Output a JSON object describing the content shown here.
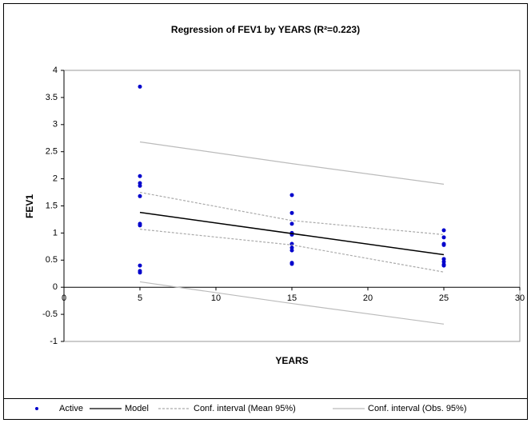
{
  "chart_data": {
    "type": "scatter",
    "title": "Regression of FEV1 by YEARS (R²=0.223)",
    "x_label": "YEARS",
    "y_label": "FEV1",
    "xlim": [
      0,
      30
    ],
    "xticks": [
      0,
      5,
      10,
      15,
      20,
      25,
      30
    ],
    "ylim": [
      -1,
      4
    ],
    "yticks": [
      -1,
      -0.5,
      0,
      0.5,
      1,
      1.5,
      2,
      2.5,
      3,
      3.5,
      4
    ],
    "series": [
      {
        "name": "Active",
        "kind": "points",
        "color": "#0000cc",
        "x": [
          5,
          5,
          5,
          5,
          5,
          5,
          5,
          5,
          5,
          5,
          15,
          15,
          15,
          15,
          15,
          15,
          15,
          15,
          15,
          15,
          25,
          25,
          25,
          25,
          25,
          25,
          25,
          25
        ],
        "values": [
          3.7,
          2.05,
          1.92,
          1.87,
          1.68,
          1.17,
          1.14,
          0.4,
          0.3,
          0.27,
          1.7,
          1.37,
          1.17,
          1.0,
          0.97,
          0.8,
          0.73,
          0.68,
          0.45,
          0.43,
          1.05,
          0.92,
          0.8,
          0.78,
          0.52,
          0.47,
          0.42,
          0.4
        ]
      },
      {
        "name": "Model",
        "kind": "line",
        "color": "#000000",
        "x": [
          5,
          25
        ],
        "values": [
          1.38,
          0.6
        ]
      },
      {
        "name": "Conf. interval (Mean 95%)",
        "kind": "dashed-band",
        "color": "#aaaaaa",
        "x": [
          5,
          15,
          25
        ],
        "upper": [
          1.75,
          1.23,
          0.97
        ],
        "lower": [
          1.07,
          0.78,
          0.28
        ]
      },
      {
        "name": "Conf. interval (Obs. 95%)",
        "kind": "band",
        "color": "#bbbbbb",
        "x": [
          5,
          15,
          25
        ],
        "upper": [
          2.68,
          2.28,
          1.9
        ],
        "lower": [
          0.1,
          -0.3,
          -0.68
        ]
      }
    ]
  }
}
